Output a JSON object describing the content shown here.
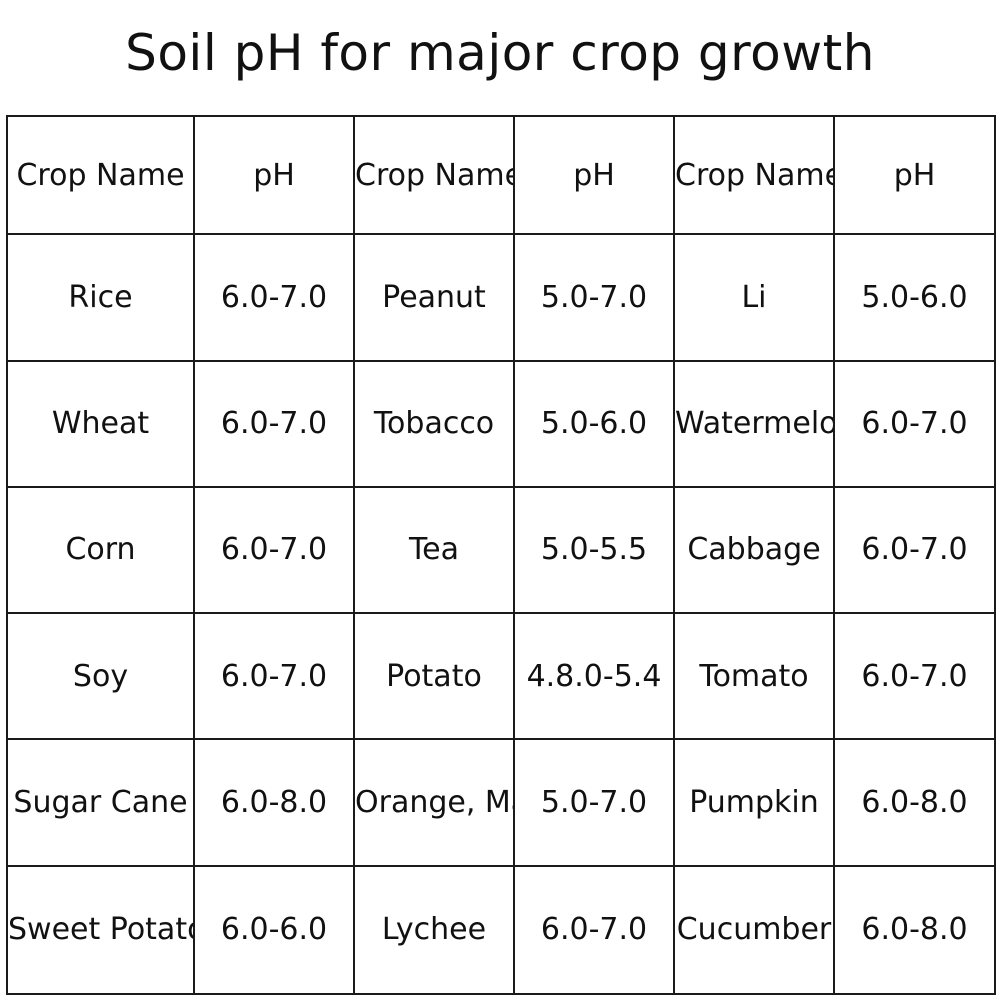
{
  "title": "Soil pH for major crop growth",
  "header": [
    "Crop Name",
    "pH",
    "Crop Name",
    "pH",
    "Crop Name",
    "pH"
  ],
  "rows": [
    [
      "Rice",
      "6.0-7.0",
      "Peanut",
      "5.0-7.0",
      "Li",
      "5.0-6.0"
    ],
    [
      "Wheat",
      "6.0-7.0",
      "Tobacco",
      "5.0-6.0",
      "Watermelon",
      "6.0-7.0"
    ],
    [
      "Corn",
      "6.0-7.0",
      "Tea",
      "5.0-5.5",
      "Cabbage",
      "6.0-7.0"
    ],
    [
      "Soy",
      "6.0-7.0",
      "Potato",
      "4.8.0-5.4",
      "Tomato",
      "6.0-7.0"
    ],
    [
      "Sugar Cane",
      "6.0-8.0",
      "Orange, Mandarin",
      "5.0-7.0",
      "Pumpkin",
      "6.0-8.0"
    ],
    [
      "Sweet Potato",
      "6.0-6.0",
      "Lychee",
      "6.0-7.0",
      "Cucumber",
      "6.0-8.0"
    ]
  ]
}
